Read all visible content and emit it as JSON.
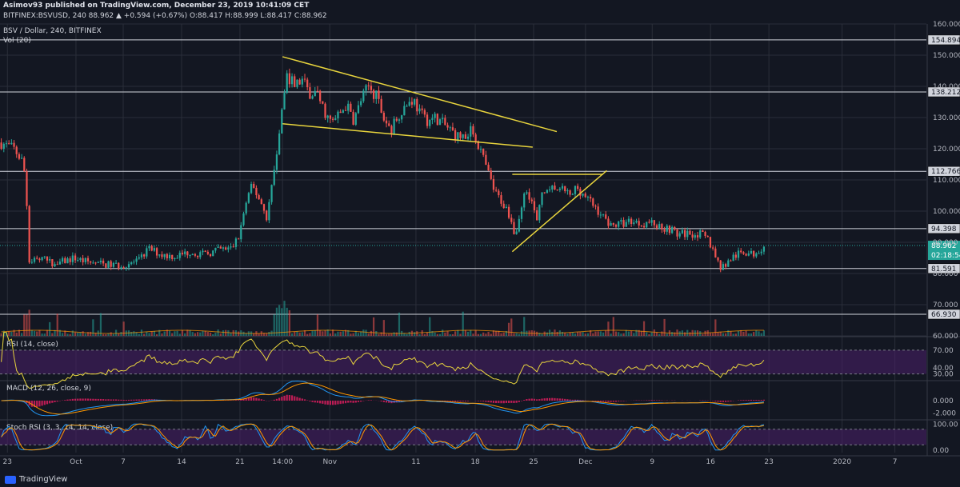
{
  "header": {
    "line1": "Asimov93 published on TradingView.com, December 23, 2019 10:41:09 CET",
    "line2": "BITFINEX:BSVUSD, 240  88.962  ▲ +0.594 (+0.67%)  O:88.417  H:88.999  L:88.417  C:88.962",
    "symbol_label": "BSV / Dollar, 240, BITFINEX",
    "vol_label": "Vol (20)"
  },
  "brand": {
    "name": "TradingView",
    "icon": "tradingview-logo-icon"
  },
  "colors": {
    "background": "#131722",
    "grid": "#2a2e39",
    "up": "#26a69a",
    "down": "#ef5350",
    "trendline": "#e8d43d",
    "level": "#d1d4dc",
    "rsi": "#e8d43d",
    "rsi_band": "#4a1f6a",
    "macd": "#2196f3",
    "signal": "#ff9800",
    "histogram": "#e91e63",
    "stoch_k": "#2196f3",
    "stoch_d": "#ff9800",
    "current_price": "#26a69a"
  },
  "chart_data": {
    "type": "candlestick",
    "symbol": "BITFINEX:BSVUSD",
    "interval": "240",
    "ylim": [
      60,
      160
    ],
    "price_ticks": [
      "160.000",
      "150.000",
      "140.000",
      "130.000",
      "120.000",
      "110.000",
      "100.000",
      "90.000",
      "80.000",
      "70.000",
      "60.000"
    ],
    "price_tick_values": [
      160,
      150,
      140,
      130,
      120,
      110,
      100,
      90,
      80,
      70,
      60
    ],
    "x_ticks": [
      {
        "label": "23",
        "t": 0.008
      },
      {
        "label": "Oct",
        "t": 0.082
      },
      {
        "label": "7",
        "t": 0.133
      },
      {
        "label": "14",
        "t": 0.196
      },
      {
        "label": "21",
        "t": 0.259
      },
      {
        "label": "14:00",
        "t": 0.305
      },
      {
        "label": "Nov",
        "t": 0.356
      },
      {
        "label": "11",
        "t": 0.449
      },
      {
        "label": "18",
        "t": 0.513
      },
      {
        "label": "25",
        "t": 0.576
      },
      {
        "label": "Dec",
        "t": 0.632
      },
      {
        "label": "9",
        "t": 0.704
      },
      {
        "label": "16",
        "t": 0.767
      },
      {
        "label": "23",
        "t": 0.83
      },
      {
        "label": "2020",
        "t": 0.909
      },
      {
        "label": "7",
        "t": 0.966
      }
    ],
    "horizontal_levels": [
      {
        "label": "154.894",
        "value": 154.894
      },
      {
        "label": "138.212",
        "value": 138.212
      },
      {
        "label": "112.766",
        "value": 112.766
      },
      {
        "label": "94.398",
        "value": 94.398
      },
      {
        "label": "81.591",
        "value": 81.591
      },
      {
        "label": "66.930",
        "value": 66.93
      }
    ],
    "current_price": {
      "label": "88.962",
      "value": 88.962,
      "countdown": "02:18:54"
    },
    "trendlines": [
      {
        "t1": 0.305,
        "v1": 149.5,
        "t2": 0.601,
        "v2": 125.5
      },
      {
        "t1": 0.305,
        "v1": 128.0,
        "t2": 0.575,
        "v2": 120.5
      },
      {
        "t1": 0.553,
        "v1": 111.8,
        "t2": 0.651,
        "v2": 111.8
      },
      {
        "t1": 0.553,
        "v1": 87.0,
        "t2": 0.655,
        "v2": 113.0
      }
    ],
    "price_path": [
      [
        0.0,
        122
      ],
      [
        0.015,
        120
      ],
      [
        0.024,
        116
      ],
      [
        0.028,
        110
      ],
      [
        0.031,
        84
      ],
      [
        0.04,
        85
      ],
      [
        0.06,
        83
      ],
      [
        0.08,
        85
      ],
      [
        0.09,
        84
      ],
      [
        0.11,
        83
      ],
      [
        0.13,
        82.5
      ],
      [
        0.15,
        84
      ],
      [
        0.16,
        88
      ],
      [
        0.175,
        86
      ],
      [
        0.19,
        85.5
      ],
      [
        0.205,
        87
      ],
      [
        0.22,
        86
      ],
      [
        0.235,
        87.5
      ],
      [
        0.25,
        88
      ],
      [
        0.258,
        92
      ],
      [
        0.265,
        102
      ],
      [
        0.272,
        108
      ],
      [
        0.28,
        104
      ],
      [
        0.288,
        98
      ],
      [
        0.296,
        113
      ],
      [
        0.303,
        128
      ],
      [
        0.31,
        144
      ],
      [
        0.318,
        140
      ],
      [
        0.326,
        142
      ],
      [
        0.334,
        138
      ],
      [
        0.342,
        138
      ],
      [
        0.35,
        132
      ],
      [
        0.358,
        128
      ],
      [
        0.366,
        131
      ],
      [
        0.374,
        134
      ],
      [
        0.382,
        129
      ],
      [
        0.39,
        136
      ],
      [
        0.398,
        140
      ],
      [
        0.406,
        137
      ],
      [
        0.414,
        130
      ],
      [
        0.422,
        126
      ],
      [
        0.43,
        131
      ],
      [
        0.438,
        134
      ],
      [
        0.446,
        136
      ],
      [
        0.454,
        131
      ],
      [
        0.462,
        129
      ],
      [
        0.47,
        130
      ],
      [
        0.478,
        128
      ],
      [
        0.486,
        126
      ],
      [
        0.494,
        124
      ],
      [
        0.502,
        124
      ],
      [
        0.51,
        126
      ],
      [
        0.518,
        120
      ],
      [
        0.526,
        113
      ],
      [
        0.534,
        106
      ],
      [
        0.542,
        103
      ],
      [
        0.55,
        99
      ],
      [
        0.556,
        92
      ],
      [
        0.562,
        100
      ],
      [
        0.568,
        108
      ],
      [
        0.574,
        103
      ],
      [
        0.58,
        96
      ],
      [
        0.586,
        108
      ],
      [
        0.592,
        105
      ],
      [
        0.598,
        108
      ],
      [
        0.604,
        106
      ],
      [
        0.61,
        107
      ],
      [
        0.616,
        104
      ],
      [
        0.622,
        108
      ],
      [
        0.628,
        106
      ],
      [
        0.634,
        104
      ],
      [
        0.64,
        102
      ],
      [
        0.646,
        100
      ],
      [
        0.654,
        97
      ],
      [
        0.662,
        95.5
      ],
      [
        0.672,
        96
      ],
      [
        0.682,
        97
      ],
      [
        0.692,
        96
      ],
      [
        0.702,
        96.5
      ],
      [
        0.712,
        95
      ],
      [
        0.722,
        94.5
      ],
      [
        0.732,
        92.5
      ],
      [
        0.744,
        93
      ],
      [
        0.756,
        92.5
      ],
      [
        0.764,
        91
      ],
      [
        0.772,
        86
      ],
      [
        0.778,
        82
      ],
      [
        0.784,
        83
      ],
      [
        0.79,
        85
      ],
      [
        0.796,
        86
      ],
      [
        0.804,
        87
      ],
      [
        0.812,
        86
      ],
      [
        0.82,
        88
      ],
      [
        0.826,
        88.962
      ]
    ],
    "indicators": [
      {
        "name": "RSI (14, close)",
        "type": "rsi",
        "ylim": [
          20,
          90
        ],
        "ticks": [
          "70.00",
          "40.00",
          "30.00"
        ],
        "tick_values": [
          70,
          40,
          30
        ],
        "band": [
          30,
          70
        ]
      },
      {
        "name": "MACD (12, 26, close, 9)",
        "type": "macd",
        "ylim": [
          -3,
          3
        ],
        "ticks": [
          "0.000",
          "-2.000"
        ],
        "tick_values": [
          0,
          -2
        ]
      },
      {
        "name": "Stoch RSI (3, 3, 14, 14, close)",
        "type": "stoch",
        "ylim": [
          -10,
          110
        ],
        "ticks": [
          "100.00",
          "0.00"
        ],
        "tick_values": [
          100,
          0
        ],
        "band": [
          20,
          80
        ]
      }
    ]
  }
}
